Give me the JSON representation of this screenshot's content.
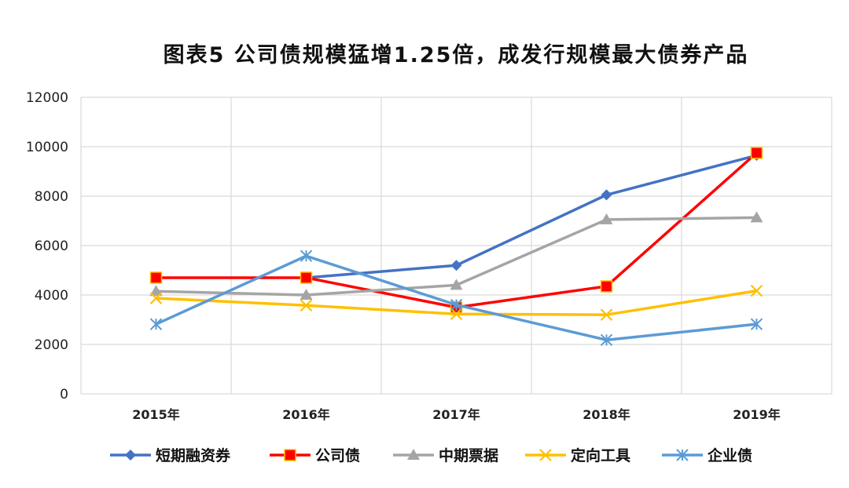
{
  "chart_data": {
    "type": "line",
    "title": "图表5 公司债规模猛增1.25倍，成发行规模最大债券产品",
    "categories": [
      "2015年",
      "2016年",
      "2017年",
      "2018年",
      "2019年"
    ],
    "ylim": [
      0,
      12000
    ],
    "yticks": [
      0,
      2000,
      4000,
      6000,
      8000,
      10000,
      12000
    ],
    "grid": true,
    "legend_position": "bottom",
    "series": [
      {
        "name": "短期融资券",
        "color": "#4472C4",
        "marker": "diamond",
        "values": [
          null,
          4700,
          5200,
          8050,
          9650
        ]
      },
      {
        "name": "公司债",
        "color": "#FF0000",
        "marker": "square",
        "values": [
          4700,
          4700,
          3500,
          4350,
          9750
        ]
      },
      {
        "name": "中期票据",
        "color": "#A5A5A5",
        "marker": "triangle",
        "values": [
          4150,
          4000,
          4400,
          7050,
          7130
        ]
      },
      {
        "name": "定向工具",
        "color": "#FFC000",
        "marker": "x",
        "values": [
          3870,
          3580,
          3230,
          3200,
          4170
        ]
      },
      {
        "name": "企业债",
        "color": "#5B9BD5",
        "marker": "star",
        "values": [
          2820,
          5580,
          3600,
          2180,
          2820
        ]
      }
    ]
  }
}
